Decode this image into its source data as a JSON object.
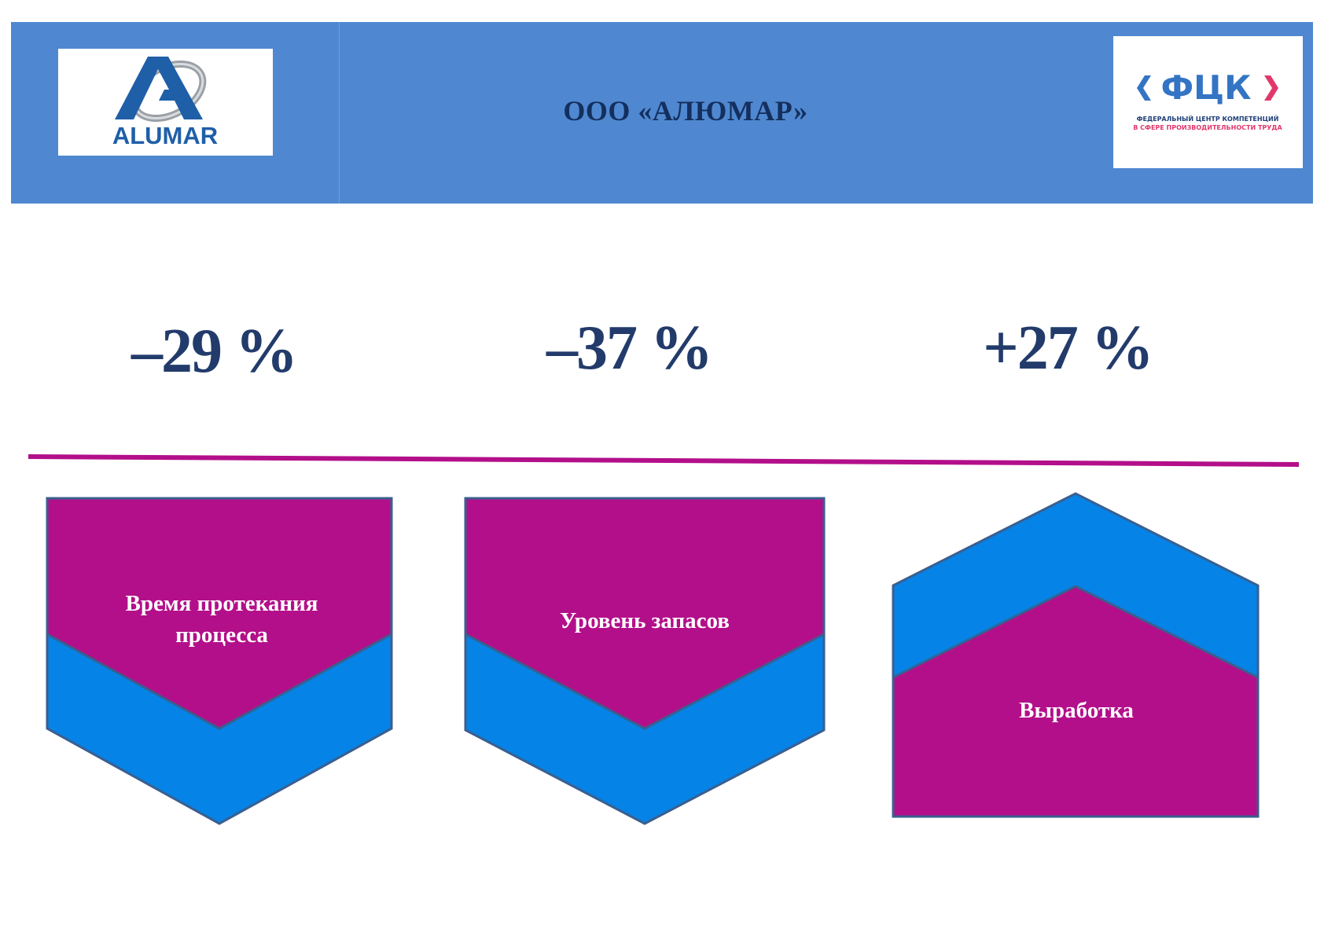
{
  "header": {
    "company_title": "ООО «АЛЮМАР»",
    "background_color": "#4f88d0",
    "left_logo": {
      "name": "alumar-logo",
      "text": "ALUMAR"
    },
    "right_logo": {
      "name": "fck-logo",
      "mark": "ФЦК",
      "caption_line1": "ФЕДЕРАЛЬНЫЙ ЦЕНТР КОМПЕТЕНЦИЙ",
      "caption_line2": "В СФЕРЕ ПРОИЗВОДИТЕЛЬНОСТИ ТРУДА"
    }
  },
  "metrics": [
    {
      "value": "–29 %",
      "label": "Время протекания процесса",
      "direction": "down"
    },
    {
      "value": "–37 %",
      "label": "Уровень запасов",
      "direction": "down"
    },
    {
      "value": "+27 %",
      "label": "Выработка",
      "direction": "up"
    }
  ],
  "colors": {
    "metric_text": "#223b6b",
    "magenta": "#b30f8a",
    "blue": "#0583e6",
    "shape_outline": "#3a5f8f",
    "divider": "#b30f8a"
  }
}
